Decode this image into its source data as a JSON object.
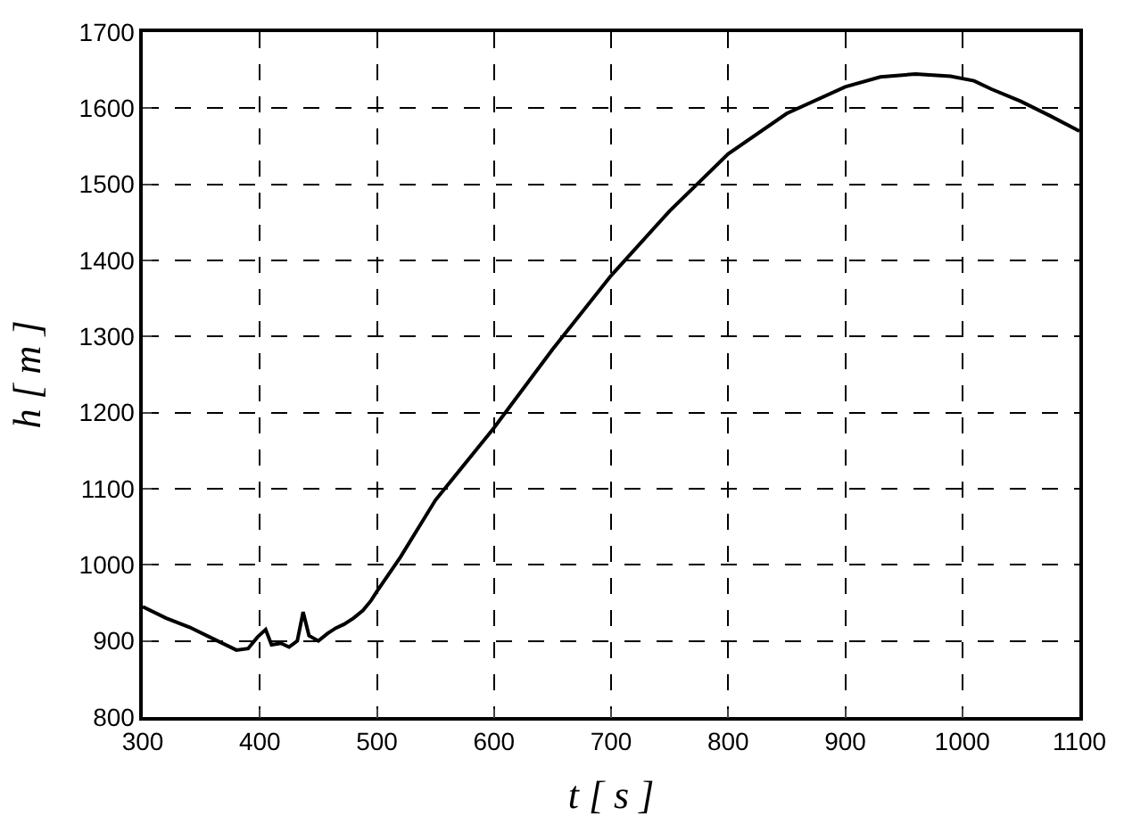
{
  "chart_data": {
    "type": "line",
    "xlabel": "t [ s ]",
    "ylabel": "h [ m ]",
    "x": [
      300,
      320,
      340,
      360,
      380,
      390,
      398,
      405,
      410,
      418,
      425,
      432,
      437,
      442,
      450,
      458,
      465,
      472,
      480,
      488,
      495,
      500,
      520,
      550,
      600,
      650,
      700,
      750,
      800,
      850,
      900,
      930,
      960,
      990,
      1010,
      1025,
      1050,
      1075,
      1100
    ],
    "series": [
      {
        "color": "#000000",
        "values": [
          945,
          930,
          918,
          903,
          888,
          890,
          905,
          915,
          895,
          897,
          892,
          900,
          938,
          907,
          900,
          910,
          917,
          922,
          930,
          940,
          953,
          965,
          1010,
          1085,
          1180,
          1283,
          1380,
          1465,
          1540,
          1593,
          1628,
          1641,
          1645,
          1642,
          1636,
          1625,
          1609,
          1590,
          1570
        ]
      }
    ],
    "xlim": [
      300,
      1100
    ],
    "ylim": [
      800,
      1700
    ],
    "xticks": [
      300,
      400,
      500,
      600,
      700,
      800,
      900,
      1000,
      1100
    ],
    "yticks": [
      800,
      900,
      1000,
      1100,
      1200,
      1300,
      1400,
      1500,
      1600,
      1700
    ],
    "grid": true,
    "marker": "none",
    "line_style": "solid"
  }
}
